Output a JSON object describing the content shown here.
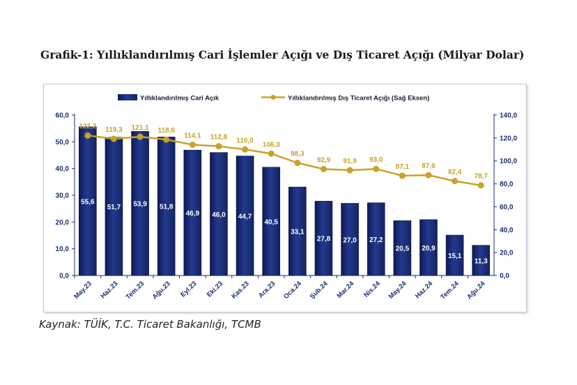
{
  "title": "Grafik-1: Yıllıklandırılmış Cari İşlemler Açığı ve Dış Ticaret Açığı (Milyar Dolar)",
  "source": "Kaynak: TÜİK, T.C. Ticaret Bakanlığı, TCMB",
  "colors": {
    "bar": "#1c2f80",
    "bar_dark": "#0d1a55",
    "line": "#c9a227",
    "axis_text": "#1a2d6e",
    "label": "#ffffff"
  },
  "chart_data": {
    "type": "bar",
    "categories": [
      "May.23",
      "Haz.23",
      "Tem.23",
      "Ağu.23",
      "Eyl.23",
      "Eki.23",
      "Kas.23",
      "Ara.23",
      "Oca.24",
      "Şub.24",
      "Mar.24",
      "Nis.24",
      "May.24",
      "Haz.24",
      "Tem.24",
      "Ağu.24"
    ],
    "series": [
      {
        "name": "Yıllıklandırılmış Cari Açık",
        "type": "bar",
        "axis": "left",
        "values": [
          55.6,
          51.7,
          53.9,
          51.8,
          46.9,
          46.0,
          44.7,
          40.5,
          33.1,
          27.8,
          27.0,
          27.2,
          20.5,
          20.9,
          15.1,
          11.3
        ],
        "labels": [
          "55,6",
          "51,7",
          "53,9",
          "51,8",
          "46,9",
          "46,0",
          "44,7",
          "40,5",
          "33,1",
          "27,8",
          "27,0",
          "27,2",
          "20,5",
          "20,9",
          "15,1",
          "11,3"
        ]
      },
      {
        "name": "Yıllıklandırılmış Dış Ticaret Açığı (Sağ Eksen)",
        "type": "line",
        "axis": "right",
        "values": [
          122.2,
          119.3,
          121.1,
          118.6,
          114.1,
          112.8,
          110.0,
          106.3,
          98.3,
          92.9,
          91.9,
          93.0,
          87.1,
          87.6,
          82.4,
          78.7
        ],
        "labels": [
          "122,2",
          "119,3",
          "121,1",
          "118,6",
          "114,1",
          "112,8",
          "110,0",
          "106,3",
          "98,3",
          "92,9",
          "91,9",
          "93,0",
          "87,1",
          "87,6",
          "82,4",
          "78,7"
        ]
      }
    ],
    "y_left": {
      "lim": [
        0,
        60
      ],
      "ticks": [
        "0,0",
        "10,0",
        "20,0",
        "30,0",
        "40,0",
        "50,0",
        "60,0"
      ]
    },
    "y_right": {
      "lim": [
        0,
        140
      ],
      "ticks": [
        "0,0",
        "20,0",
        "40,0",
        "60,0",
        "80,0",
        "100,0",
        "120,0",
        "140,0"
      ]
    },
    "legend_position": "top-center",
    "grid": false
  }
}
